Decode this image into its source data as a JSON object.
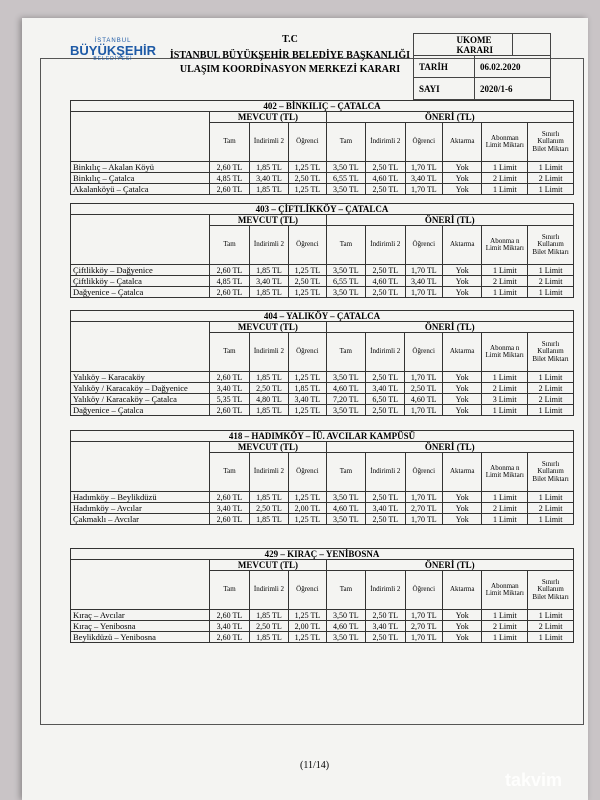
{
  "header": {
    "logo": [
      "İSTANBUL",
      "BÜYÜKŞEHİR",
      "BELEDİYESİ"
    ],
    "tc": "T.C",
    "title_1": "İSTANBUL BÜYÜKŞEHİR BELEDİYE BAŞKANLIĞI",
    "title_2": "ULAŞIM KOORDİNASYON MERKEZİ KARARI",
    "box_title": "UKOME KARARI",
    "date_label": "TARİH",
    "date": "06.02.2020",
    "number_label": "SAYI",
    "number": "2020/1-6"
  },
  "tables": [
    {
      "title": "402 – BİNKILIÇ – ÇATALCA",
      "groups": [
        "MEVCUT (TL)",
        "ÖNERİ (TL)"
      ],
      "columns": [
        "Tam",
        "İndirimli 2",
        "Öğrenci",
        "Tam",
        "İndirimli 2",
        "Öğrenci",
        "Aktarma",
        "Abonman Limit Miktarı",
        "Sınırlı Kullanım Bilet Miktarı"
      ],
      "rows": [
        [
          "Binkılıç – Akalan Köyü",
          "2,60 TL",
          "1,85 TL",
          "1,25 TL",
          "3,50 TL",
          "2,50 TL",
          "1,70 TL",
          "Yok",
          "1 Limit",
          "1 Limit"
        ],
        [
          "Binkılıç – Çatalca",
          "4,85 TL",
          "3,40 TL",
          "2,50 TL",
          "6,55 TL",
          "4,60 TL",
          "3,40 TL",
          "Yok",
          "2 Limit",
          "2 Limit"
        ],
        [
          "Akalanköyü – Çatalca",
          "2,60 TL",
          "1,85 TL",
          "1,25 TL",
          "3,50 TL",
          "2,50 TL",
          "1,70 TL",
          "Yok",
          "1 Limit",
          "1 Limit"
        ]
      ]
    },
    {
      "title": "403 – ÇİFTLİKKÖY – ÇATALCA",
      "groups": [
        "MEVCUT (TL)",
        "ÖNERİ (TL)"
      ],
      "columns": [
        "Tam",
        "İndirimli 2",
        "Öğrenci",
        "Tam",
        "İndirimli 2",
        "Öğrenci",
        "Aktarma",
        "Abonma n Limit Miktarı",
        "Sınırlı Kullanım Bilet Miktarı"
      ],
      "rows": [
        [
          "Çiftlikköy – Dağyenice",
          "2,60 TL",
          "1,85 TL",
          "1,25 TL",
          "3,50 TL",
          "2,50 TL",
          "1,70 TL",
          "Yok",
          "1 Limit",
          "1 Limit"
        ],
        [
          "Çiftlikköy – Çatalca",
          "4,85 TL",
          "3,40 TL",
          "2,50 TL",
          "6,55 TL",
          "4,60 TL",
          "3,40 TL",
          "Yok",
          "2 Limit",
          "2 Limit"
        ],
        [
          "Dağyenice – Çatalca",
          "2,60 TL",
          "1,85 TL",
          "1,25 TL",
          "3,50 TL",
          "2,50 TL",
          "1,70 TL",
          "Yok",
          "1 Limit",
          "1 Limit"
        ]
      ]
    },
    {
      "title": "404 – YALIKÖY – ÇATALCA",
      "groups": [
        "MEVCUT (TL)",
        "ÖNERİ (TL)"
      ],
      "columns": [
        "Tam",
        "İndirimli 2",
        "Öğrenci",
        "Tam",
        "İndirimli 2",
        "Öğrenci",
        "Aktarma",
        "Abonma n Limit Miktarı",
        "Sınırlı Kullanım Bilet Miktarı"
      ],
      "rows": [
        [
          "Yalıköy – Karacaköy",
          "2,60 TL",
          "1,85 TL",
          "1,25 TL",
          "3,50 TL",
          "2,50 TL",
          "1,70 TL",
          "Yok",
          "1 Limit",
          "1 Limit"
        ],
        [
          "Yalıköy / Karacaköy – Dağyenice",
          "3,40 TL",
          "2,50 TL",
          "1,85 TL",
          "4,60 TL",
          "3,40 TL",
          "2,50 TL",
          "Yok",
          "2 Limit",
          "2 Limit"
        ],
        [
          "Yalıköy / Karacaköy – Çatalca",
          "5,35 TL",
          "4,80 TL",
          "3,40 TL",
          "7,20 TL",
          "6,50 TL",
          "4,60 TL",
          "Yok",
          "3 Limit",
          "2 Limit"
        ],
        [
          "Dağyenice – Çatalca",
          "2,60 TL",
          "1,85 TL",
          "1,25 TL",
          "3,50 TL",
          "2,50 TL",
          "1,70 TL",
          "Yok",
          "1 Limit",
          "1 Limit"
        ]
      ]
    },
    {
      "title": "418 – HADIMKÖY – İÜ. AVCILAR KAMPÜSÜ",
      "groups": [
        "MEVCUT (TL)",
        "ÖNERİ (TL)"
      ],
      "columns": [
        "Tam",
        "İndirimli 2",
        "Öğrenci",
        "Tam",
        "İndirimli 2",
        "Öğrenci",
        "Aktarma",
        "Abonma n Limit Miktarı",
        "Sınırlı Kullanım Bilet Miktarı"
      ],
      "rows": [
        [
          "Hadımköy – Beylikdüzü",
          "2,60 TL",
          "1,85 TL",
          "1,25 TL",
          "3,50 TL",
          "2,50 TL",
          "1,70 TL",
          "Yok",
          "1 Limit",
          "1 Limit"
        ],
        [
          "Hadımköy – Avcılar",
          "3,40 TL",
          "2,50 TL",
          "2,00 TL",
          "4,60 TL",
          "3,40 TL",
          "2,70 TL",
          "Yok",
          "2 Limit",
          "2 Limit"
        ],
        [
          "Çakmaklı – Avcılar",
          "2,60 TL",
          "1,85 TL",
          "1,25 TL",
          "3,50 TL",
          "2,50 TL",
          "1,70 TL",
          "Yok",
          "1 Limit",
          "1 Limit"
        ]
      ]
    },
    {
      "title": "429 – KIRAÇ – YENİBOSNA",
      "groups": [
        "MEVCUT (TL)",
        "ÖNERİ (TL)"
      ],
      "columns": [
        "Tam",
        "İndirimli 2",
        "Öğrenci",
        "Tam",
        "İndirimli 2",
        "Öğrenci",
        "Aktarma",
        "Abonman Limit Miktarı",
        "Sınırlı Kullanım Bilet Miktarı"
      ],
      "rows": [
        [
          "Kıraç – Avcılar",
          "2,60 TL",
          "1,85 TL",
          "1,25 TL",
          "3,50 TL",
          "2,50 TL",
          "1,70 TL",
          "Yok",
          "1 Limit",
          "1 Limit"
        ],
        [
          "Kıraç – Yenibosna",
          "3,40 TL",
          "2,50 TL",
          "2,00 TL",
          "4,60 TL",
          "3,40 TL",
          "2,70 TL",
          "Yok",
          "2 Limit",
          "2 Limit"
        ],
        [
          "Beylikdüzü – Yenibosna",
          "2,60 TL",
          "1,85 TL",
          "1,25 TL",
          "3,50 TL",
          "2,50 TL",
          "1,70 TL",
          "Yok",
          "1 Limit",
          "1 Limit"
        ]
      ]
    }
  ],
  "footer": {
    "page": "(11/14)",
    "watermark": "takvim"
  }
}
